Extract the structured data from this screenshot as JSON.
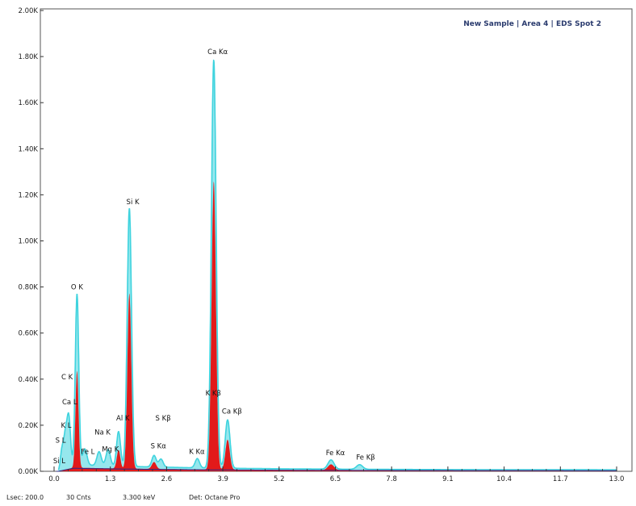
{
  "chart_data": {
    "type": "line",
    "header": "New Sample | Area 4 | EDS Spot 2",
    "xlabel": "",
    "ylabel": "",
    "xlim": [
      -0.3,
      13.0
    ],
    "ylim": [
      0,
      2000
    ],
    "x_ticks": [
      0.0,
      1.3,
      2.6,
      3.9,
      5.2,
      6.5,
      7.8,
      9.1,
      10.4,
      11.7,
      13.0
    ],
    "x_tick_labels": [
      "0.0",
      "1.3",
      "2.6",
      "3.9",
      "5.2",
      "6.5",
      "7.8",
      "9.1",
      "10.4",
      "11.7",
      "13.0"
    ],
    "y_ticks": [
      0,
      200,
      400,
      600,
      800,
      1000,
      1200,
      1400,
      1600,
      1800,
      2000
    ],
    "y_tick_labels": [
      "0.00K",
      "0.20K",
      "0.40K",
      "0.60K",
      "0.80K",
      "1.00K",
      "1.20K",
      "1.40K",
      "1.60K",
      "1.80K",
      "2.00K"
    ],
    "series": [
      {
        "color": "#3fd3de",
        "peaks": [
          {
            "x": 0.18,
            "y": 80,
            "w": 0.035
          },
          {
            "x": 0.26,
            "y": 140,
            "w": 0.04
          },
          {
            "x": 0.34,
            "y": 210,
            "w": 0.04
          },
          {
            "x": 0.53,
            "y": 740,
            "w": 0.04
          },
          {
            "x": 0.71,
            "y": 70,
            "w": 0.05
          },
          {
            "x": 1.04,
            "y": 60,
            "w": 0.05
          },
          {
            "x": 1.25,
            "y": 70,
            "w": 0.05
          },
          {
            "x": 1.49,
            "y": 150,
            "w": 0.045
          },
          {
            "x": 1.74,
            "y": 1120,
            "w": 0.05
          },
          {
            "x": 2.31,
            "y": 50,
            "w": 0.05
          },
          {
            "x": 2.47,
            "y": 35,
            "w": 0.05
          },
          {
            "x": 3.31,
            "y": 40,
            "w": 0.05
          },
          {
            "x": 3.69,
            "y": 1770,
            "w": 0.055
          },
          {
            "x": 4.01,
            "y": 210,
            "w": 0.055
          },
          {
            "x": 6.4,
            "y": 40,
            "w": 0.07
          },
          {
            "x": 7.06,
            "y": 20,
            "w": 0.07
          }
        ]
      },
      {
        "color": "#e21a1a",
        "peaks": [
          {
            "x": 0.53,
            "y": 420,
            "w": 0.035
          },
          {
            "x": 1.49,
            "y": 80,
            "w": 0.04
          },
          {
            "x": 1.74,
            "y": 760,
            "w": 0.045
          },
          {
            "x": 2.31,
            "y": 30,
            "w": 0.05
          },
          {
            "x": 3.69,
            "y": 1250,
            "w": 0.05
          },
          {
            "x": 4.01,
            "y": 130,
            "w": 0.05
          },
          {
            "x": 6.4,
            "y": 25,
            "w": 0.07
          }
        ]
      }
    ],
    "peak_labels": [
      {
        "text": "O  K",
        "x": 0.53,
        "y": 790
      },
      {
        "text": "C  K",
        "x": 0.3,
        "y": 400
      },
      {
        "text": "Ca  L",
        "x": 0.36,
        "y": 290
      },
      {
        "text": "K  L",
        "x": 0.28,
        "y": 190
      },
      {
        "text": "S  L",
        "x": 0.15,
        "y": 125
      },
      {
        "text": "Si  L",
        "x": 0.12,
        "y": 35
      },
      {
        "text": "Fe  L",
        "x": 0.78,
        "y": 75
      },
      {
        "text": "Na  K",
        "x": 1.12,
        "y": 160
      },
      {
        "text": "Mg  K",
        "x": 1.3,
        "y": 85
      },
      {
        "text": "Al  K",
        "x": 1.59,
        "y": 220
      },
      {
        "text": "Si  K",
        "x": 1.82,
        "y": 1160
      },
      {
        "text": "S  Kβ",
        "x": 2.52,
        "y": 220
      },
      {
        "text": "S  Kα",
        "x": 2.41,
        "y": 100
      },
      {
        "text": "K  Kα",
        "x": 3.3,
        "y": 75
      },
      {
        "text": "Ca  Kα",
        "x": 3.78,
        "y": 1810
      },
      {
        "text": "K  Kβ",
        "x": 3.68,
        "y": 330
      },
      {
        "text": "Ca  Kβ",
        "x": 4.11,
        "y": 250
      },
      {
        "text": "Fe  Kα",
        "x": 6.5,
        "y": 70
      },
      {
        "text": "Fe  Kβ",
        "x": 7.2,
        "y": 50
      }
    ]
  },
  "footer": {
    "lsec": "Lsec: 200.0",
    "cnts": "30 Cnts",
    "kev": "3.300 keV",
    "det": "Det: Octane Pro"
  }
}
